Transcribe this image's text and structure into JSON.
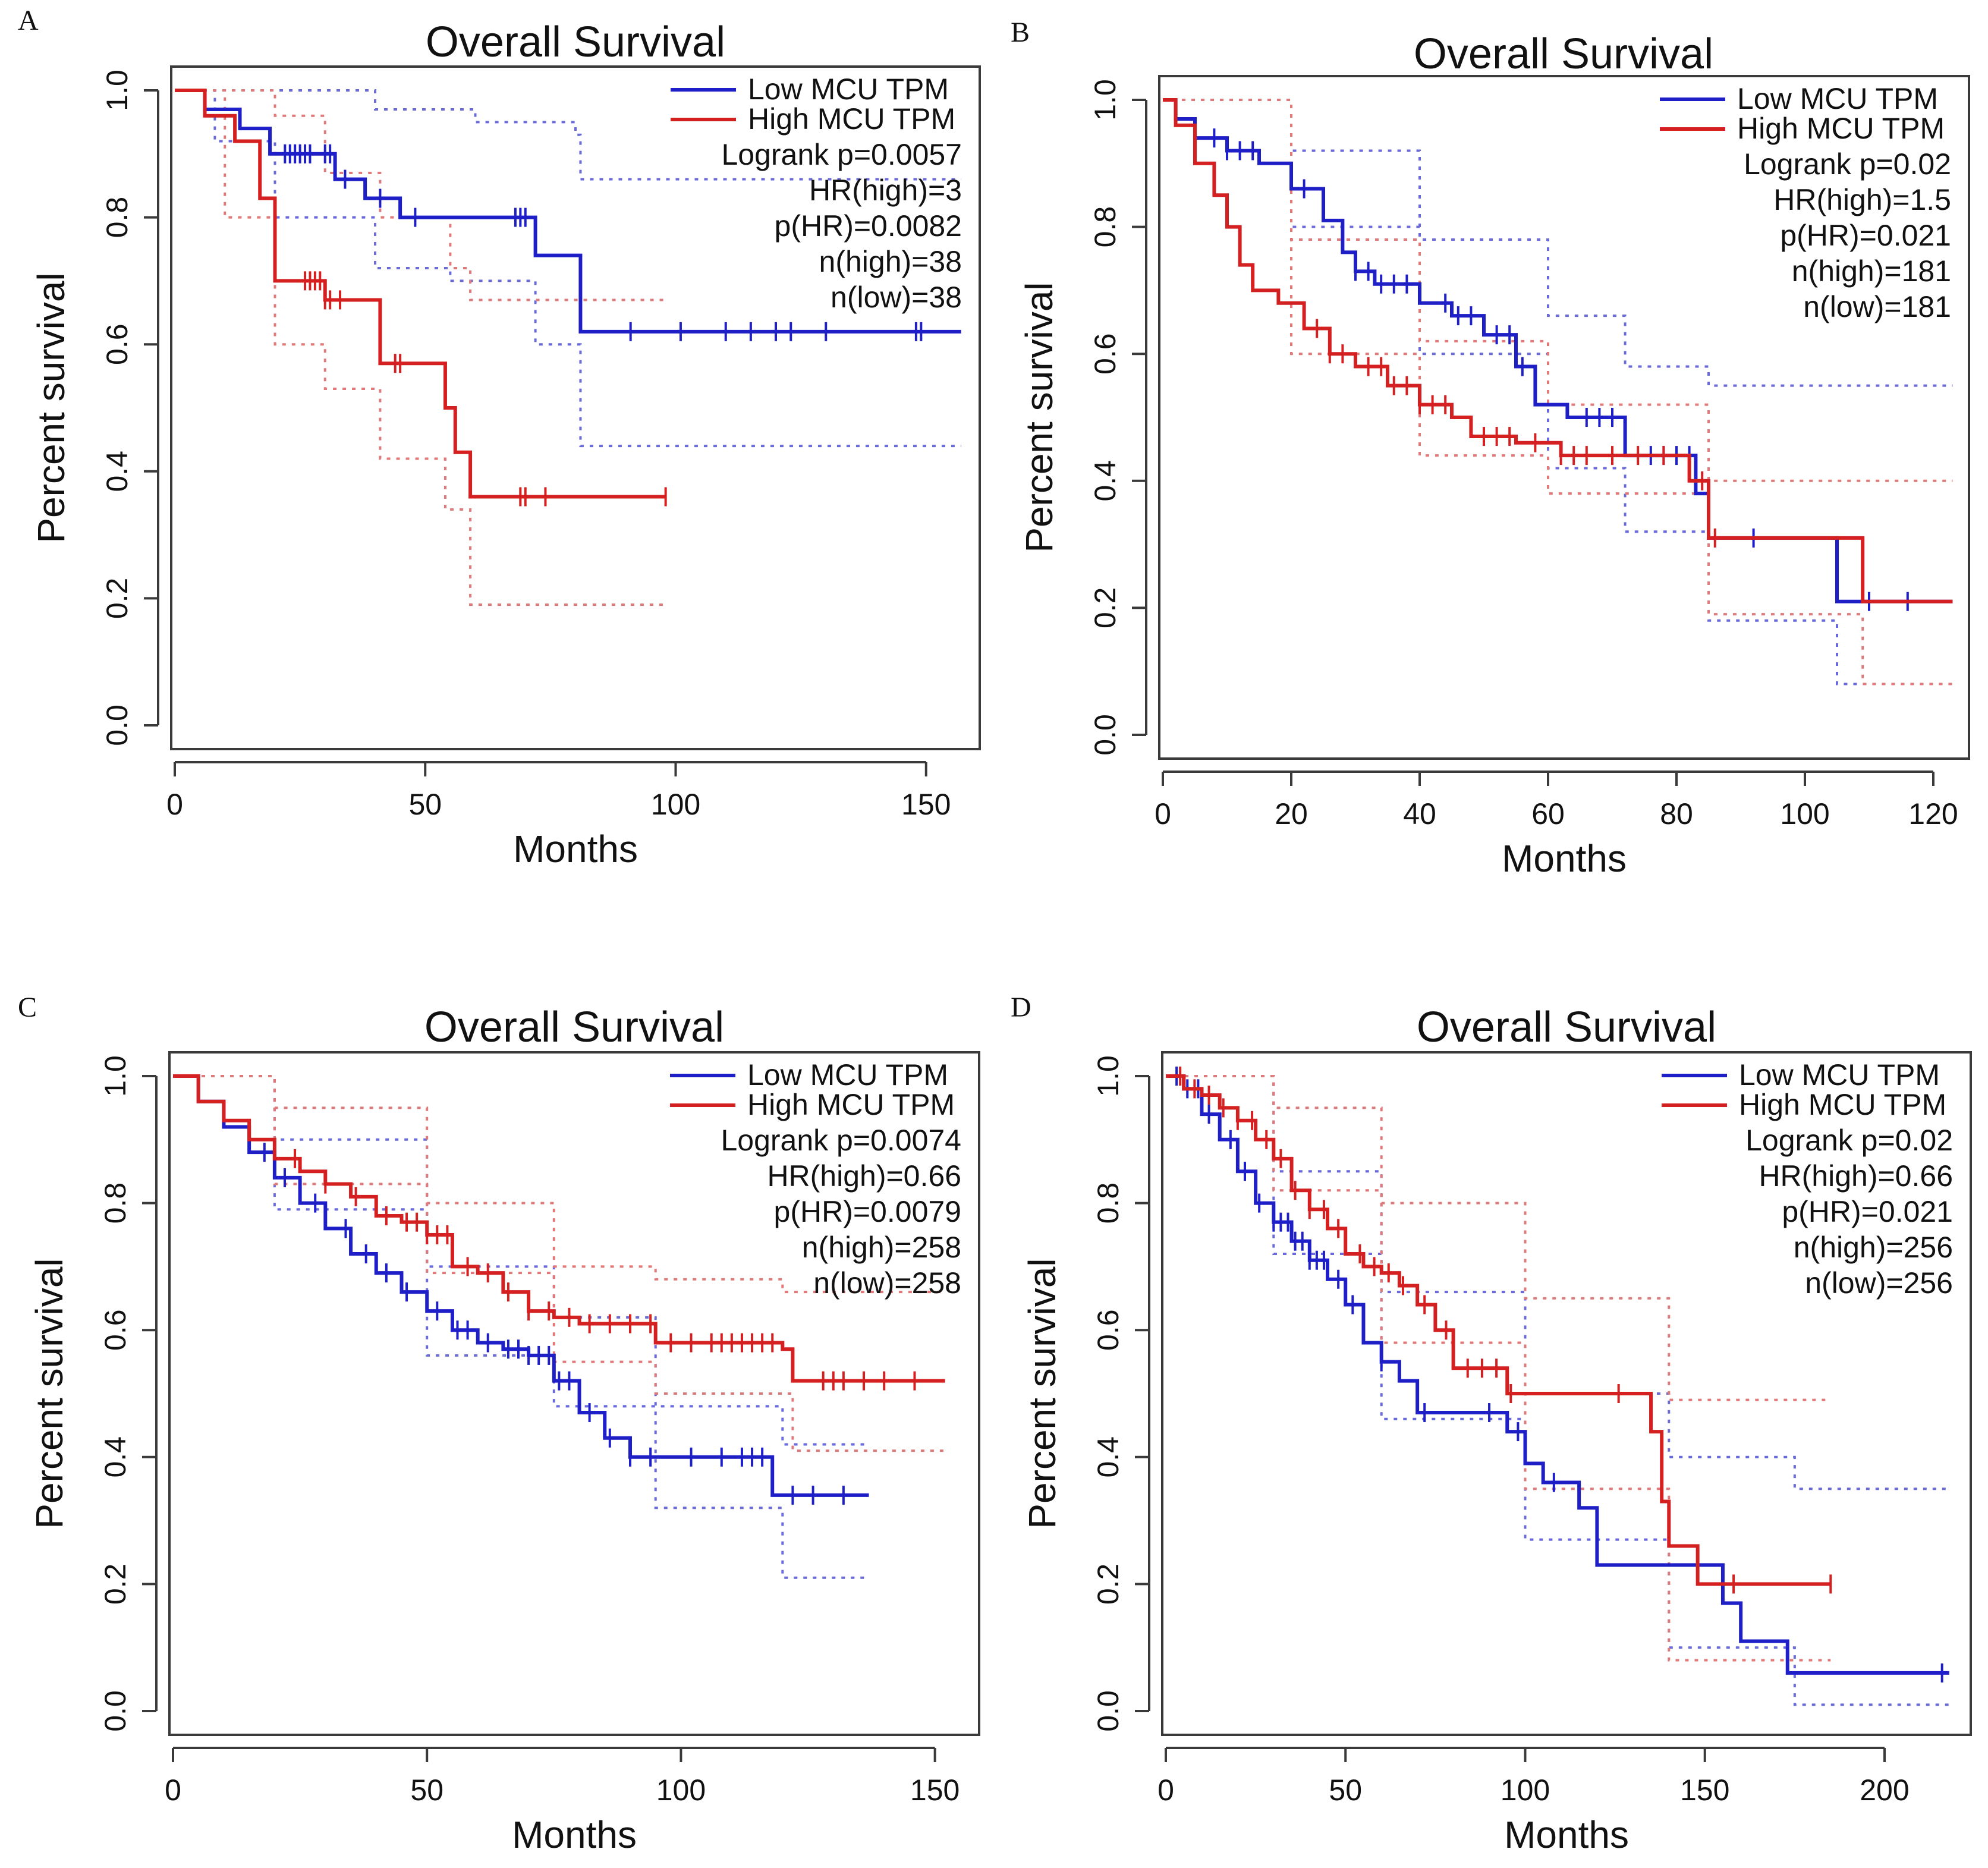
{
  "colors": {
    "low": "#1f1fc8",
    "high": "#d42020",
    "axis": "#3a3a3a",
    "text": "#111111",
    "low_ci": "#6a6ad8",
    "high_ci": "#e07a7a"
  },
  "chart_data": [
    {
      "panel": "A",
      "type": "line",
      "title": "Overall Survival",
      "xlabel": "Months",
      "ylabel": "Percent survival",
      "xlim": [
        0,
        160
      ],
      "ylim": [
        0,
        1.05
      ],
      "xticks": [
        0,
        50,
        100,
        150
      ],
      "yticks": [
        0.0,
        0.2,
        0.4,
        0.6,
        0.8,
        1.0
      ],
      "legend": {
        "position": "top-right",
        "entries": [
          "Low MCU TPM",
          "High MCU TPM"
        ],
        "stats": [
          "Logrank p=0.0057",
          "HR(high)=3",
          "p(HR)=0.0082",
          "n(high)=38",
          "n(low)=38"
        ]
      },
      "series": [
        {
          "name": "Low MCU TPM",
          "step_x": [
            0,
            6,
            13,
            19,
            32,
            38,
            45,
            72,
            81,
            157
          ],
          "step_y": [
            1.0,
            0.97,
            0.94,
            0.9,
            0.86,
            0.83,
            0.8,
            0.74,
            0.62,
            0.62
          ],
          "ci_upper_x": [
            0,
            8,
            20,
            40,
            60,
            80,
            81,
            157
          ],
          "ci_upper_y": [
            1.0,
            1.0,
            1.0,
            0.97,
            0.95,
            0.93,
            0.86,
            0.86
          ],
          "ci_lower_x": [
            0,
            8,
            20,
            40,
            55,
            72,
            81,
            157
          ],
          "ci_lower_y": [
            1.0,
            0.92,
            0.8,
            0.72,
            0.7,
            0.6,
            0.44,
            0.44
          ],
          "censor_x": [
            22,
            23,
            24,
            25,
            26,
            27,
            30,
            31,
            34,
            41,
            48,
            68,
            69,
            70,
            91,
            101,
            110,
            115,
            120,
            123,
            130,
            148,
            149
          ]
        },
        {
          "name": "High MCU TPM",
          "step_x": [
            0,
            6,
            12,
            17,
            20,
            30,
            41,
            43,
            54,
            56,
            59,
            98
          ],
          "step_y": [
            1.0,
            0.96,
            0.92,
            0.83,
            0.7,
            0.67,
            0.57,
            0.57,
            0.5,
            0.43,
            0.36,
            0.36
          ],
          "ci_upper_x": [
            0,
            10,
            20,
            30,
            41,
            55,
            59,
            98
          ],
          "ci_upper_y": [
            1.0,
            1.0,
            0.96,
            0.87,
            0.8,
            0.72,
            0.67,
            0.67
          ],
          "ci_lower_x": [
            0,
            10,
            20,
            30,
            41,
            54,
            59,
            98
          ],
          "ci_lower_y": [
            1.0,
            0.8,
            0.6,
            0.53,
            0.42,
            0.34,
            0.19,
            0.19
          ],
          "censor_x": [
            26,
            27,
            28,
            29,
            30,
            31,
            33,
            44,
            45,
            69,
            70,
            74,
            98
          ]
        }
      ]
    },
    {
      "panel": "B",
      "type": "line",
      "title": "Overall Survival",
      "xlabel": "Months",
      "ylabel": "Percent survival",
      "xlim": [
        0,
        125
      ],
      "ylim": [
        0,
        1.05
      ],
      "xticks": [
        0,
        20,
        40,
        60,
        80,
        100,
        120
      ],
      "yticks": [
        0.0,
        0.2,
        0.4,
        0.6,
        0.8,
        1.0
      ],
      "legend": {
        "position": "top-right",
        "entries": [
          "Low MCU TPM",
          "High MCU TPM"
        ],
        "stats": [
          "Logrank p=0.02",
          "HR(high)=1.5",
          "p(HR)=0.021",
          "n(high)=181",
          "n(low)=181"
        ]
      },
      "series": [
        {
          "name": "Low MCU TPM",
          "step_x": [
            0,
            2,
            5,
            10,
            15,
            20,
            25,
            28,
            30,
            33,
            40,
            45,
            50,
            55,
            58,
            63,
            72,
            80,
            83,
            85,
            105,
            110,
            123
          ],
          "step_y": [
            1.0,
            0.97,
            0.94,
            0.92,
            0.9,
            0.86,
            0.81,
            0.76,
            0.73,
            0.71,
            0.68,
            0.66,
            0.63,
            0.58,
            0.52,
            0.5,
            0.44,
            0.44,
            0.38,
            0.31,
            0.21,
            0.21,
            0.21
          ],
          "ci_upper_x": [
            0,
            20,
            40,
            60,
            72,
            85,
            123
          ],
          "ci_upper_y": [
            1.0,
            0.92,
            0.78,
            0.66,
            0.58,
            0.55,
            0.55
          ],
          "ci_lower_x": [
            0,
            20,
            40,
            60,
            72,
            85,
            105,
            123
          ],
          "ci_lower_y": [
            1.0,
            0.8,
            0.6,
            0.42,
            0.32,
            0.18,
            0.08,
            0.08
          ],
          "censor_x": [
            8,
            10,
            12,
            14,
            22,
            30,
            32,
            34,
            36,
            38,
            44,
            46,
            48,
            52,
            54,
            56,
            66,
            68,
            70,
            76,
            78,
            80,
            82,
            92,
            110,
            116
          ]
        },
        {
          "name": "High MCU TPM",
          "step_x": [
            0,
            2,
            5,
            8,
            10,
            12,
            14,
            18,
            22,
            26,
            30,
            35,
            40,
            45,
            48,
            55,
            62,
            70,
            82,
            85,
            109,
            123
          ],
          "step_y": [
            1.0,
            0.96,
            0.9,
            0.85,
            0.8,
            0.74,
            0.7,
            0.68,
            0.64,
            0.6,
            0.58,
            0.55,
            0.52,
            0.5,
            0.47,
            0.46,
            0.44,
            0.44,
            0.4,
            0.31,
            0.21,
            0.21
          ],
          "ci_upper_x": [
            0,
            20,
            40,
            60,
            85,
            123
          ],
          "ci_upper_y": [
            1.0,
            0.78,
            0.62,
            0.52,
            0.4,
            0.4
          ],
          "ci_lower_x": [
            0,
            20,
            40,
            60,
            85,
            109,
            123
          ],
          "ci_lower_y": [
            1.0,
            0.6,
            0.44,
            0.38,
            0.19,
            0.08,
            0.08
          ],
          "censor_x": [
            24,
            26,
            28,
            32,
            34,
            36,
            38,
            40,
            42,
            44,
            50,
            52,
            54,
            58,
            62,
            64,
            66,
            70,
            74,
            78,
            84,
            86
          ]
        }
      ]
    },
    {
      "panel": "C",
      "type": "line",
      "title": "Overall Survival",
      "xlabel": "Months",
      "ylabel": "Percent survival",
      "xlim": [
        0,
        158
      ],
      "ylim": [
        0,
        1.05
      ],
      "xticks": [
        0,
        50,
        100,
        150
      ],
      "yticks": [
        0.0,
        0.2,
        0.4,
        0.6,
        0.8,
        1.0
      ],
      "legend": {
        "position": "top-right",
        "entries": [
          "Low MCU TPM",
          "High MCU TPM"
        ],
        "stats": [
          "Logrank p=0.0074",
          "HR(high)=0.66",
          "p(HR)=0.0079",
          "n(high)=258",
          "n(low)=258"
        ]
      },
      "series": [
        {
          "name": "Low MCU TPM",
          "step_x": [
            0,
            5,
            10,
            15,
            20,
            25,
            30,
            35,
            40,
            45,
            50,
            55,
            60,
            65,
            70,
            75,
            80,
            85,
            90,
            95,
            100,
            110,
            118,
            120,
            137
          ],
          "step_y": [
            1.0,
            0.96,
            0.92,
            0.88,
            0.84,
            0.8,
            0.76,
            0.72,
            0.69,
            0.66,
            0.63,
            0.6,
            0.58,
            0.57,
            0.56,
            0.52,
            0.47,
            0.43,
            0.4,
            0.4,
            0.4,
            0.4,
            0.34,
            0.34,
            0.34
          ],
          "ci_upper_x": [
            0,
            20,
            50,
            75,
            95,
            120,
            137
          ],
          "ci_upper_y": [
            1.0,
            0.9,
            0.7,
            0.62,
            0.48,
            0.42,
            0.42
          ],
          "ci_lower_x": [
            0,
            20,
            50,
            75,
            95,
            118,
            120,
            137
          ],
          "ci_lower_y": [
            1.0,
            0.79,
            0.56,
            0.48,
            0.32,
            0.32,
            0.21,
            0.21
          ],
          "censor_x": [
            18,
            22,
            28,
            34,
            38,
            42,
            46,
            52,
            56,
            58,
            62,
            66,
            68,
            70,
            72,
            74,
            76,
            78,
            82,
            86,
            90,
            94,
            102,
            108,
            112,
            114,
            116,
            122,
            126,
            132
          ]
        },
        {
          "name": "High MCU TPM",
          "step_x": [
            0,
            5,
            10,
            15,
            20,
            25,
            30,
            35,
            40,
            45,
            50,
            55,
            60,
            65,
            70,
            75,
            80,
            90,
            95,
            120,
            122,
            152
          ],
          "step_y": [
            1.0,
            0.96,
            0.93,
            0.9,
            0.87,
            0.85,
            0.83,
            0.81,
            0.78,
            0.77,
            0.75,
            0.7,
            0.69,
            0.66,
            0.63,
            0.62,
            0.61,
            0.61,
            0.58,
            0.57,
            0.52,
            0.52
          ],
          "ci_upper_x": [
            0,
            20,
            50,
            75,
            95,
            120,
            152
          ],
          "ci_upper_y": [
            1.0,
            0.95,
            0.8,
            0.7,
            0.68,
            0.66,
            0.66
          ],
          "ci_lower_x": [
            0,
            20,
            50,
            75,
            95,
            122,
            152
          ],
          "ci_lower_y": [
            1.0,
            0.83,
            0.69,
            0.55,
            0.5,
            0.41,
            0.41
          ],
          "censor_x": [
            24,
            30,
            36,
            42,
            46,
            48,
            50,
            52,
            54,
            58,
            62,
            66,
            70,
            74,
            78,
            82,
            86,
            90,
            94,
            98,
            102,
            106,
            108,
            110,
            112,
            114,
            116,
            118,
            128,
            130,
            132,
            136,
            140,
            146
          ]
        }
      ]
    },
    {
      "panel": "D",
      "type": "line",
      "title": "Overall Survival",
      "xlabel": "Months",
      "ylabel": "Percent survival",
      "xlim": [
        0,
        223
      ],
      "ylim": [
        0,
        1.05
      ],
      "xticks": [
        0,
        50,
        100,
        150,
        200
      ],
      "yticks": [
        0.0,
        0.2,
        0.4,
        0.6,
        0.8,
        1.0
      ],
      "legend": {
        "position": "top-right",
        "entries": [
          "Low MCU TPM",
          "High MCU TPM"
        ],
        "stats": [
          "Logrank p=0.02",
          "HR(high)=0.66",
          "p(HR)=0.021",
          "n(high)=256",
          "n(low)=256"
        ]
      },
      "series": [
        {
          "name": "Low MCU TPM",
          "step_x": [
            0,
            5,
            10,
            15,
            20,
            25,
            30,
            35,
            40,
            45,
            50,
            55,
            60,
            65,
            70,
            80,
            95,
            100,
            105,
            115,
            120,
            135,
            140,
            155,
            160,
            173,
            218
          ],
          "step_y": [
            1.0,
            0.98,
            0.94,
            0.9,
            0.85,
            0.8,
            0.77,
            0.74,
            0.71,
            0.68,
            0.64,
            0.58,
            0.55,
            0.52,
            0.47,
            0.47,
            0.44,
            0.39,
            0.36,
            0.32,
            0.23,
            0.23,
            0.23,
            0.17,
            0.11,
            0.06,
            0.06
          ],
          "ci_upper_x": [
            0,
            30,
            60,
            100,
            140,
            175,
            218
          ],
          "ci_upper_y": [
            1.0,
            0.85,
            0.66,
            0.5,
            0.4,
            0.35,
            0.35
          ],
          "ci_lower_x": [
            0,
            30,
            60,
            100,
            140,
            175,
            218
          ],
          "ci_lower_y": [
            1.0,
            0.72,
            0.46,
            0.27,
            0.1,
            0.01,
            0.01
          ],
          "censor_x": [
            3,
            6,
            9,
            12,
            18,
            22,
            26,
            30,
            32,
            34,
            36,
            38,
            40,
            42,
            44,
            48,
            52,
            60,
            72,
            90,
            98,
            108,
            216
          ]
        },
        {
          "name": "High MCU TPM",
          "step_x": [
            0,
            5,
            10,
            15,
            20,
            25,
            30,
            35,
            40,
            45,
            50,
            55,
            60,
            65,
            70,
            75,
            80,
            85,
            95,
            100,
            120,
            135,
            138,
            140,
            148,
            185
          ],
          "step_y": [
            1.0,
            0.98,
            0.97,
            0.95,
            0.93,
            0.9,
            0.87,
            0.82,
            0.79,
            0.76,
            0.72,
            0.7,
            0.69,
            0.67,
            0.64,
            0.6,
            0.54,
            0.54,
            0.5,
            0.5,
            0.5,
            0.44,
            0.33,
            0.26,
            0.2,
            0.2
          ],
          "ci_upper_x": [
            0,
            30,
            60,
            100,
            140,
            185
          ],
          "ci_upper_y": [
            1.0,
            0.95,
            0.8,
            0.65,
            0.49,
            0.49
          ],
          "ci_lower_x": [
            0,
            30,
            60,
            100,
            140,
            185
          ],
          "ci_lower_y": [
            1.0,
            0.82,
            0.58,
            0.35,
            0.08,
            0.08
          ],
          "censor_x": [
            4,
            8,
            12,
            16,
            20,
            24,
            28,
            32,
            36,
            40,
            44,
            48,
            54,
            58,
            62,
            66,
            72,
            78,
            84,
            88,
            92,
            96,
            126,
            158,
            185
          ]
        }
      ]
    }
  ]
}
